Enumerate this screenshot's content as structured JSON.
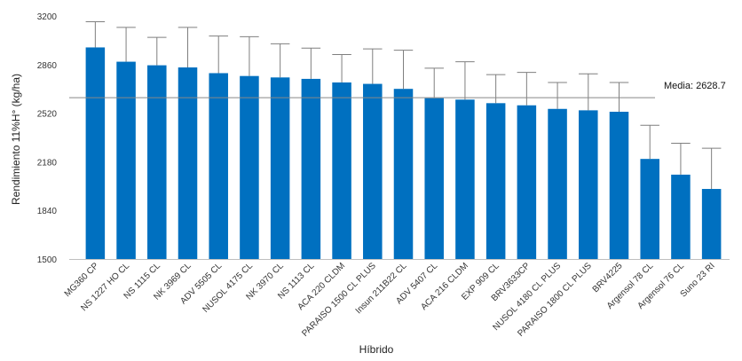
{
  "chart_data": {
    "type": "bar",
    "xlabel": "Híbrido",
    "ylabel": "Rendimiento 11%H° (kg/ha)",
    "ylim": [
      1500,
      3200
    ],
    "yticks": [
      "1500",
      "1840",
      "2180",
      "2520",
      "2860",
      "3200"
    ],
    "grid": false,
    "categories": [
      "MG360 CP",
      "NS 1227 HO CL",
      "NS 1115 CL",
      "NK 3969 CL",
      "ADV 5505 CL",
      "NUSOL 4175 CL",
      "NK 3970 CL",
      "NS 1113 CL",
      "ACA 220 CLDM",
      "PARAISO 1500 CL PLUS",
      "Insun 211B22 CL",
      "ADV 5407 CL",
      "ACA 216 CLDM",
      "EXP 909 CL",
      "BRV3633CP",
      "NUSOL 4180 CL PLUS",
      "PARAISO 1800 CL PLUS",
      "BRV4225",
      "Argensol 78 CL",
      "Argensol 76 CL",
      "Suno 23 RI"
    ],
    "values": [
      2980,
      2880,
      2855,
      2840,
      2800,
      2780,
      2770,
      2760,
      2735,
      2725,
      2690,
      2625,
      2615,
      2590,
      2575,
      2550,
      2540,
      2530,
      2200,
      2090,
      1990
    ],
    "error_upper": [
      3160,
      3120,
      3050,
      3120,
      3060,
      3055,
      3005,
      2975,
      2930,
      2970,
      2960,
      2835,
      2880,
      2790,
      2805,
      2735,
      2795,
      2735,
      2435,
      2310,
      2275
    ],
    "bar_color": "#0070c0",
    "reference_line": {
      "value": 2628.7,
      "label": "Media: 2628.7",
      "color": "#888888"
    }
  }
}
